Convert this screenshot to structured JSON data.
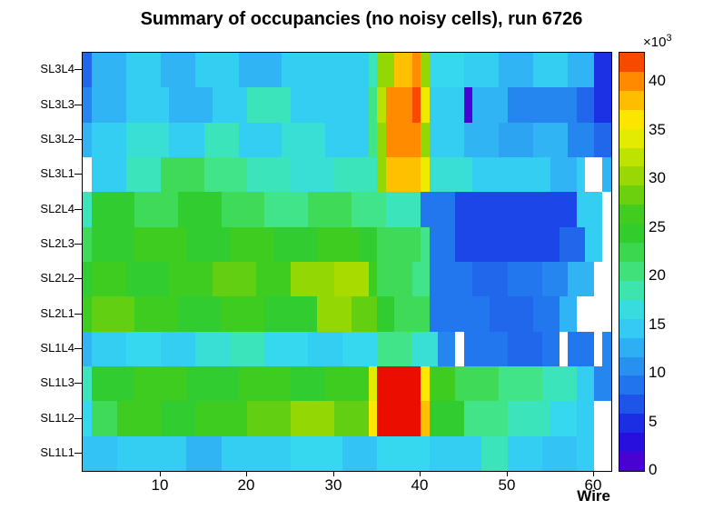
{
  "chart_data": {
    "type": "heatmap",
    "title": "Summary of occupancies (no noisy cells), run 6726",
    "xlabel": "Wire",
    "x_ticks": [
      10,
      20,
      30,
      40,
      50,
      60
    ],
    "wire_min": 1,
    "wire_max": 61,
    "rows_bottom_to_top": [
      "SL1L1",
      "SL1L2",
      "SL1L3",
      "SL1L4",
      "SL2L1",
      "SL2L2",
      "SL2L3",
      "SL2L4",
      "SL3L1",
      "SL3L2",
      "SL3L3",
      "SL3L4"
    ],
    "colorbar": {
      "ticks": [
        0,
        5,
        10,
        15,
        20,
        25,
        30,
        35,
        40
      ],
      "vmax": 43,
      "unit_scale": 1000,
      "exponent_base": "×10",
      "exponent_power": "3"
    },
    "frame_color": "#000000",
    "background_color": "#ffffff",
    "palette_stops": [
      [
        0,
        "#5a00c8"
      ],
      [
        2,
        "#3505dc"
      ],
      [
        4,
        "#1b1be0"
      ],
      [
        6,
        "#1d46e8"
      ],
      [
        9,
        "#2277ee"
      ],
      [
        12,
        "#2da4f2"
      ],
      [
        14,
        "#33c3f5"
      ],
      [
        16,
        "#35d8ef"
      ],
      [
        18,
        "#3ce4bb"
      ],
      [
        20,
        "#41e488"
      ],
      [
        22,
        "#3eda58"
      ],
      [
        24,
        "#30cc30"
      ],
      [
        27,
        "#46cc1a"
      ],
      [
        29,
        "#7ed20a"
      ],
      [
        31,
        "#a8dc00"
      ],
      [
        34,
        "#e0ec00"
      ],
      [
        36,
        "#fce800"
      ],
      [
        38,
        "#ffc000"
      ],
      [
        40,
        "#ff8c00"
      ],
      [
        42,
        "#f84a00"
      ],
      [
        43,
        "#ea0d00"
      ]
    ],
    "values_unit": "thousands, segments are [firstWire, lastWire, value]; null = no data (white)",
    "values_by_row": {
      "SL1L1": [
        [
          1,
          4,
          14
        ],
        [
          5,
          12,
          15
        ],
        [
          13,
          16,
          13
        ],
        [
          17,
          24,
          15
        ],
        [
          25,
          30,
          16
        ],
        [
          31,
          34,
          14
        ],
        [
          35,
          40,
          16
        ],
        [
          41,
          46,
          15
        ],
        [
          47,
          49,
          18
        ],
        [
          50,
          53,
          15
        ],
        [
          54,
          57,
          14
        ],
        [
          58,
          59,
          15
        ],
        [
          60,
          61,
          null
        ]
      ],
      "SL1L2": [
        [
          1,
          1,
          16
        ],
        [
          2,
          4,
          22
        ],
        [
          5,
          9,
          26
        ],
        [
          10,
          13,
          24
        ],
        [
          14,
          19,
          26
        ],
        [
          20,
          24,
          28
        ],
        [
          25,
          29,
          30
        ],
        [
          30,
          32,
          28
        ],
        [
          33,
          33,
          28
        ],
        [
          34,
          34,
          36
        ],
        [
          35,
          39,
          43
        ],
        [
          40,
          40,
          38
        ],
        [
          41,
          44,
          24
        ],
        [
          45,
          49,
          20
        ],
        [
          50,
          54,
          18
        ],
        [
          55,
          57,
          16
        ],
        [
          58,
          59,
          15
        ],
        [
          60,
          61,
          null
        ]
      ],
      "SL1L3": [
        [
          1,
          1,
          18
        ],
        [
          2,
          6,
          24
        ],
        [
          7,
          12,
          26
        ],
        [
          13,
          18,
          24
        ],
        [
          19,
          24,
          26
        ],
        [
          25,
          28,
          24
        ],
        [
          29,
          33,
          26
        ],
        [
          34,
          34,
          34
        ],
        [
          35,
          39,
          43
        ],
        [
          40,
          40,
          36
        ],
        [
          41,
          43,
          26
        ],
        [
          44,
          48,
          22
        ],
        [
          49,
          53,
          20
        ],
        [
          54,
          57,
          18
        ],
        [
          58,
          59,
          15
        ],
        [
          60,
          61,
          10
        ]
      ],
      "SL1L4": [
        [
          1,
          1,
          13
        ],
        [
          2,
          5,
          15
        ],
        [
          6,
          9,
          16
        ],
        [
          10,
          13,
          15
        ],
        [
          14,
          17,
          17
        ],
        [
          18,
          21,
          18
        ],
        [
          22,
          26,
          16
        ],
        [
          27,
          30,
          15
        ],
        [
          31,
          34,
          16
        ],
        [
          35,
          38,
          20
        ],
        [
          39,
          41,
          17
        ],
        [
          42,
          43,
          10
        ],
        [
          44,
          44,
          null
        ],
        [
          45,
          49,
          9
        ],
        [
          50,
          53,
          8
        ],
        [
          54,
          55,
          9
        ],
        [
          56,
          56,
          null
        ],
        [
          57,
          59,
          9
        ],
        [
          60,
          60,
          null
        ],
        [
          61,
          61,
          10
        ]
      ],
      "SL2L1": [
        [
          1,
          1,
          26
        ],
        [
          2,
          6,
          28
        ],
        [
          7,
          11,
          26
        ],
        [
          12,
          16,
          24
        ],
        [
          17,
          21,
          26
        ],
        [
          22,
          27,
          24
        ],
        [
          28,
          31,
          30
        ],
        [
          32,
          34,
          28
        ],
        [
          35,
          36,
          24
        ],
        [
          37,
          40,
          22
        ],
        [
          41,
          47,
          9
        ],
        [
          48,
          52,
          8
        ],
        [
          53,
          55,
          9
        ],
        [
          56,
          57,
          13
        ],
        [
          58,
          61,
          null
        ]
      ],
      "SL2L2": [
        [
          1,
          1,
          24
        ],
        [
          2,
          5,
          26
        ],
        [
          6,
          10,
          24
        ],
        [
          11,
          15,
          26
        ],
        [
          16,
          20,
          28
        ],
        [
          21,
          24,
          26
        ],
        [
          25,
          29,
          30
        ],
        [
          30,
          33,
          31
        ],
        [
          34,
          34,
          26
        ],
        [
          35,
          38,
          22
        ],
        [
          39,
          40,
          20
        ],
        [
          41,
          45,
          9
        ],
        [
          46,
          49,
          8
        ],
        [
          50,
          53,
          9
        ],
        [
          54,
          56,
          10
        ],
        [
          57,
          59,
          13
        ],
        [
          60,
          61,
          null
        ]
      ],
      "SL2L3": [
        [
          1,
          1,
          22
        ],
        [
          2,
          6,
          24
        ],
        [
          7,
          12,
          26
        ],
        [
          13,
          17,
          24
        ],
        [
          18,
          22,
          26
        ],
        [
          23,
          27,
          24
        ],
        [
          28,
          32,
          26
        ],
        [
          33,
          34,
          24
        ],
        [
          35,
          39,
          22
        ],
        [
          40,
          40,
          20
        ],
        [
          41,
          43,
          9
        ],
        [
          44,
          55,
          6
        ],
        [
          56,
          58,
          8
        ],
        [
          59,
          60,
          15
        ],
        [
          61,
          61,
          null
        ]
      ],
      "SL2L4": [
        [
          1,
          1,
          18
        ],
        [
          2,
          6,
          24
        ],
        [
          7,
          11,
          22
        ],
        [
          12,
          16,
          24
        ],
        [
          17,
          21,
          22
        ],
        [
          22,
          26,
          20
        ],
        [
          27,
          31,
          22
        ],
        [
          32,
          35,
          20
        ],
        [
          36,
          39,
          18
        ],
        [
          40,
          43,
          9
        ],
        [
          44,
          57,
          6
        ],
        [
          58,
          60,
          15
        ],
        [
          61,
          61,
          null
        ]
      ],
      "SL3L1": [
        [
          1,
          1,
          null
        ],
        [
          2,
          5,
          15
        ],
        [
          6,
          9,
          18
        ],
        [
          10,
          14,
          22
        ],
        [
          15,
          19,
          20
        ],
        [
          20,
          24,
          18
        ],
        [
          25,
          29,
          17
        ],
        [
          30,
          34,
          18
        ],
        [
          35,
          35,
          30
        ],
        [
          36,
          39,
          38
        ],
        [
          40,
          40,
          35
        ],
        [
          41,
          45,
          17
        ],
        [
          46,
          50,
          15
        ],
        [
          51,
          54,
          15
        ],
        [
          55,
          57,
          13
        ],
        [
          58,
          58,
          15
        ],
        [
          59,
          60,
          null
        ],
        [
          61,
          61,
          13
        ]
      ],
      "SL3L2": [
        [
          1,
          1,
          13
        ],
        [
          2,
          5,
          15
        ],
        [
          6,
          10,
          17
        ],
        [
          11,
          14,
          15
        ],
        [
          15,
          18,
          18
        ],
        [
          19,
          23,
          15
        ],
        [
          24,
          28,
          17
        ],
        [
          29,
          33,
          15
        ],
        [
          34,
          34,
          20
        ],
        [
          35,
          35,
          30
        ],
        [
          36,
          39,
          40
        ],
        [
          40,
          40,
          30
        ],
        [
          41,
          44,
          15
        ],
        [
          45,
          48,
          13
        ],
        [
          49,
          52,
          12
        ],
        [
          53,
          56,
          13
        ],
        [
          57,
          59,
          10
        ],
        [
          60,
          61,
          8
        ]
      ],
      "SL3L3": [
        [
          1,
          1,
          10
        ],
        [
          2,
          5,
          13
        ],
        [
          6,
          10,
          15
        ],
        [
          11,
          15,
          13
        ],
        [
          16,
          19,
          15
        ],
        [
          20,
          24,
          18
        ],
        [
          25,
          29,
          15
        ],
        [
          30,
          33,
          15
        ],
        [
          34,
          34,
          20
        ],
        [
          35,
          35,
          32
        ],
        [
          36,
          38,
          40
        ],
        [
          39,
          39,
          42
        ],
        [
          40,
          40,
          35
        ],
        [
          41,
          44,
          15
        ],
        [
          45,
          45,
          1
        ],
        [
          46,
          49,
          13
        ],
        [
          50,
          53,
          10
        ],
        [
          54,
          57,
          10
        ],
        [
          58,
          59,
          8
        ],
        [
          60,
          61,
          5
        ]
      ],
      "SL3L4": [
        [
          1,
          1,
          8
        ],
        [
          2,
          5,
          13
        ],
        [
          6,
          9,
          15
        ],
        [
          10,
          13,
          13
        ],
        [
          14,
          18,
          15
        ],
        [
          19,
          23,
          13
        ],
        [
          24,
          28,
          15
        ],
        [
          29,
          33,
          15
        ],
        [
          34,
          34,
          18
        ],
        [
          35,
          36,
          30
        ],
        [
          37,
          38,
          38
        ],
        [
          39,
          39,
          40
        ],
        [
          40,
          40,
          30
        ],
        [
          41,
          44,
          16
        ],
        [
          45,
          48,
          15
        ],
        [
          49,
          52,
          13
        ],
        [
          53,
          56,
          15
        ],
        [
          57,
          59,
          13
        ],
        [
          60,
          61,
          5
        ]
      ]
    }
  }
}
